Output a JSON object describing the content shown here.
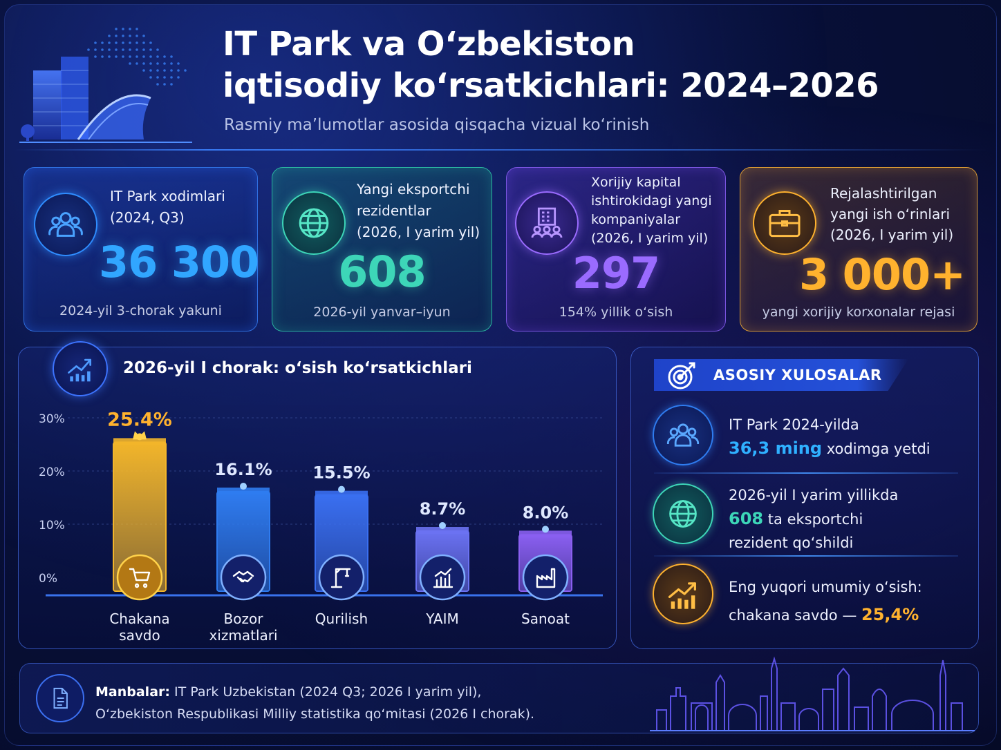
{
  "header": {
    "title_line1": "IT Park va O‘zbekiston",
    "title_line2": "iqtisodiy ko‘rsatkichlari: 2024–2026",
    "subtitle": "Rasmiy ma’lumotlar asosida qisqacha vizual ko‘rinish"
  },
  "stats": [
    {
      "label1": "IT Park xodimlari",
      "label2": "(2024, Q3)",
      "value": "36 300",
      "foot": "2024-yil 3-chorak yakuni",
      "icon": "people-icon",
      "color": "#2f8dff"
    },
    {
      "label1": "Yangi eksportchi",
      "label2": "rezidentlar",
      "label3": "(2026, I yarim yil)",
      "value": "608",
      "foot": "2026-yil yanvar–iyun",
      "icon": "globe-icon",
      "color": "#3dd6b8"
    },
    {
      "label1": "Xorijiy kapital",
      "label2": "ishtirokidagi yangi",
      "label3": "kompaniyalar",
      "label4": "(2026, I yarim yil)",
      "value": "297",
      "foot": "154% yillik o‘sish",
      "icon": "building-people-icon",
      "color": "#9a6bff"
    },
    {
      "label1": "Rejalashtirilgan",
      "label2": "yangi ish o‘rinlari",
      "label3": "(2026, I yarim yil)",
      "value": "3 000+",
      "foot": "yangi xorijiy korxonalar rejasi",
      "icon": "briefcase-icon",
      "color": "#ffb22e"
    }
  ],
  "chart_panel_title": "2026-yil I chorak: o‘sish ko‘rsatkichlari",
  "chart_data": {
    "type": "bar",
    "title": "2026-yil I chorak: o‘sish ko‘rsatkichlari",
    "categories": [
      "Chakana savdo",
      "Bozor xizmatlari",
      "Qurilish",
      "YAIM",
      "Sanoat"
    ],
    "category_lines": [
      [
        "Chakana",
        "savdo"
      ],
      [
        "Bozor",
        "xizmatlari"
      ],
      [
        "Qurilish"
      ],
      [
        "YAIM"
      ],
      [
        "Sanoat"
      ]
    ],
    "values": [
      25.4,
      16.1,
      15.5,
      8.7,
      8.0
    ],
    "value_labels": [
      "25.4%",
      "16.1%",
      "15.5%",
      "8.7%",
      "8.0%"
    ],
    "yticks": [
      "0%",
      "10%",
      "20%",
      "30%"
    ],
    "ylim": [
      0,
      30
    ],
    "grid": true,
    "colors": [
      "#f2b52a",
      "#2f7cf0",
      "#3a6ff0",
      "#6b72f2",
      "#8a5ff0"
    ],
    "icons": [
      "cart-icon",
      "handshake-icon",
      "crane-icon",
      "bar-chart-icon",
      "factory-icon"
    ]
  },
  "conclusions": {
    "heading": "ASOSIY XULOSALAR",
    "items": [
      {
        "pre": "IT Park 2024-yilda",
        "hl": "36,3 ming",
        "post": " xodimga yetdi",
        "color": "#2fb0ff",
        "icon": "people-icon"
      },
      {
        "pre": "2026-yil I yarim yillikda",
        "hl": "608",
        "post": " ta eksportchi",
        "post2": "rezident qo‘shildi",
        "color": "#3dd6b8",
        "icon": "globe-icon"
      },
      {
        "pre": "Eng yuqori umumiy o‘sish:",
        "pre2": "chakana savdo — ",
        "hl": "25,4%",
        "color": "#ffb22e",
        "icon": "trend-up-icon"
      }
    ]
  },
  "sources": {
    "label": "Manbalar:",
    "line1": " IT Park Uzbekistan (2024 Q3; 2026 I yarim yil),",
    "line2": "O‘zbekiston Respublikasi Milliy statistika qo‘mitasi (2026 I chorak)."
  }
}
